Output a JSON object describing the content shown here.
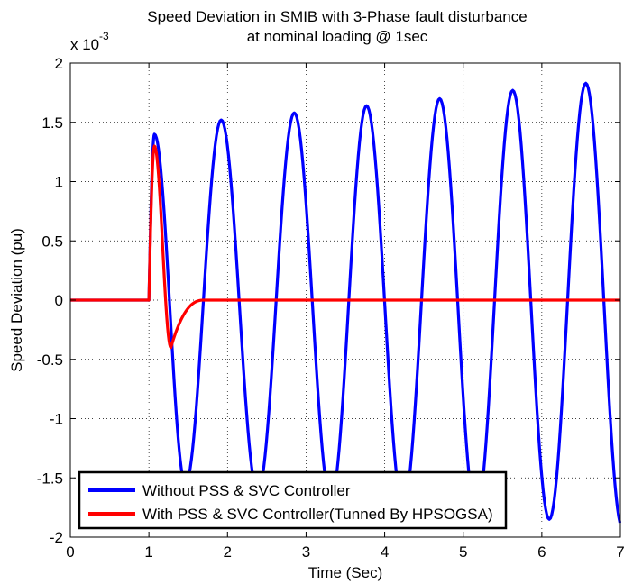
{
  "chart_data": {
    "type": "line",
    "title_line1": "Speed Deviation in SMIB with 3-Phase fault disturbance",
    "title_line2": "at nominal loading @ 1sec",
    "xlabel": "Time (Sec)",
    "ylabel": "Speed Deviation (pu)",
    "y_multiplier_base": "x 10",
    "y_multiplier_exp": "-3",
    "xlim": [
      0,
      7
    ],
    "ylim": [
      -2,
      2
    ],
    "x_ticks": [
      "0",
      "1",
      "2",
      "3",
      "4",
      "5",
      "6",
      "7"
    ],
    "y_ticks": [
      "2",
      "1.5",
      "1",
      "0.5",
      "0",
      "-0.5",
      "-1",
      "-1.5",
      "-2"
    ],
    "grid": true,
    "grid_style": "dotted",
    "legend_position": "bottom-left",
    "series": [
      {
        "name": "Without PSS & SVC Controller",
        "color": "#0000ff",
        "fault_time": 1.0,
        "initial_value": 0,
        "oscillation_period": 0.93,
        "first_peak": {
          "x": 1.07,
          "y": 1.4
        },
        "peaks": [
          {
            "x": 1.92,
            "y": 1.52
          },
          {
            "x": 2.85,
            "y": 1.58
          },
          {
            "x": 3.77,
            "y": 1.64
          },
          {
            "x": 4.7,
            "y": 1.7
          },
          {
            "x": 5.63,
            "y": 1.77
          },
          {
            "x": 6.56,
            "y": 1.83
          }
        ],
        "trough_values": [
          -1.55,
          -1.62,
          -1.68,
          -1.74,
          -1.8,
          -1.85,
          -1.92
        ]
      },
      {
        "name": "With PSS & SVC Controller(Tunned By HPSOGSA)",
        "color": "#ff0000",
        "fault_time": 1.0,
        "initial_value": 0,
        "peak": {
          "x": 1.07,
          "y": 1.3
        },
        "trough": {
          "x": 1.28,
          "y": -0.4
        },
        "settle_time": 1.7,
        "final_value": 0
      }
    ]
  }
}
